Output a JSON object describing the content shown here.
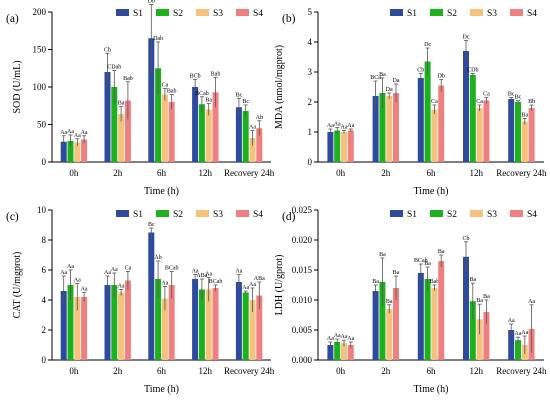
{
  "colors": {
    "S1": "#2e4a9e",
    "S2": "#1db11d",
    "S3": "#f4c27c",
    "S4": "#f08080"
  },
  "chart_data": [
    {
      "type": "bar",
      "panel_letter": "(a)",
      "categories": [
        "0h",
        "2h",
        "6h",
        "12h",
        "Recovery 24h"
      ],
      "xlabel": "Time (h)",
      "ylabel": "SOD (U/mL)",
      "ylim": [
        0,
        200
      ],
      "yticks": [
        0,
        50,
        100,
        150,
        200
      ],
      "ytick_labels": [
        "0",
        "50",
        "100",
        "150",
        "200"
      ],
      "legend": [
        "S1",
        "S2",
        "S3",
        "S4"
      ],
      "legend_position": "top",
      "series": [
        {
          "name": "S1",
          "values": [
            27,
            120,
            165,
            100,
            73
          ],
          "errors": [
            8,
            25,
            45,
            10,
            12
          ],
          "labels": [
            "Aa",
            "Cb",
            "Db",
            "BCb",
            "Bc"
          ]
        },
        {
          "name": "S2",
          "values": [
            28,
            100,
            125,
            77,
            68
          ],
          "errors": [
            8,
            22,
            35,
            10,
            8
          ],
          "labels": [
            "Aa",
            "CDab",
            "Dab",
            "BCab",
            "Bc"
          ]
        },
        {
          "name": "S3",
          "values": [
            26,
            64,
            90,
            70,
            32
          ],
          "errors": [
            5,
            10,
            8,
            8,
            10
          ],
          "labels": [
            "Aa",
            "Ba",
            "Ca",
            "Ba",
            "Aa"
          ]
        },
        {
          "name": "S4",
          "values": [
            30,
            82,
            80,
            93,
            45
          ],
          "errors": [
            5,
            25,
            10,
            20,
            10
          ],
          "labels": [
            "Aa",
            "Bab",
            "Bab",
            "Bab",
            "Ab"
          ]
        }
      ]
    },
    {
      "type": "bar",
      "panel_letter": "(b)",
      "categories": [
        "0h",
        "2h",
        "6h",
        "12h",
        "Recovery 24h"
      ],
      "xlabel": "Time (h)",
      "ylabel": "MDA (nmol/mgprot)",
      "ylim": [
        0,
        5
      ],
      "yticks": [
        0,
        1,
        2,
        3,
        4,
        5
      ],
      "ytick_labels": [
        "0",
        "1",
        "2",
        "3",
        "4",
        "5"
      ],
      "legend": [
        "S1",
        "S2",
        "S3",
        "S4"
      ],
      "legend_position": "top",
      "series": [
        {
          "name": "S1",
          "values": [
            1.0,
            2.2,
            2.8,
            3.7,
            2.1
          ],
          "errors": [
            0.1,
            0.5,
            0.15,
            0.35,
            0.05
          ],
          "labels": [
            "Aa",
            "BCa",
            "Cb",
            "Dc",
            "Bc"
          ]
        },
        {
          "name": "S2",
          "values": [
            1.05,
            2.3,
            3.35,
            2.9,
            2.0
          ],
          "errors": [
            0.1,
            0.5,
            0.45,
            0.05,
            0.05
          ],
          "labels": [
            "Aa",
            "Ba",
            "Dc",
            "CDb",
            "Bc"
          ]
        },
        {
          "name": "S3",
          "values": [
            1.0,
            2.2,
            1.75,
            1.8,
            1.35
          ],
          "errors": [
            0.05,
            0.1,
            0.15,
            0.1,
            0.1
          ],
          "labels": [
            "Aa",
            "Da",
            "Ca",
            "Ca",
            "Ba"
          ]
        },
        {
          "name": "S4",
          "values": [
            1.05,
            2.3,
            2.55,
            2.05,
            1.8
          ],
          "errors": [
            0.05,
            0.3,
            0.2,
            0.1,
            0.1
          ],
          "labels": [
            "Aa",
            "Da",
            "Db",
            "Ca",
            "Bb"
          ]
        }
      ]
    },
    {
      "type": "bar",
      "panel_letter": "(c)",
      "categories": [
        "0h",
        "2h",
        "6h",
        "12h",
        "Recovery 24h"
      ],
      "xlabel": "Time (h)",
      "ylabel": "CAT (U/mgprot)",
      "ylim": [
        0,
        10
      ],
      "yticks": [
        0,
        2,
        4,
        6,
        8,
        10
      ],
      "ytick_labels": [
        "0",
        "2",
        "4",
        "6",
        "8",
        "10"
      ],
      "legend": [
        "S1",
        "S2",
        "S3",
        "S4"
      ],
      "legend_position": "top",
      "series": [
        {
          "name": "S1",
          "values": [
            4.6,
            5.0,
            8.5,
            5.4,
            5.2
          ],
          "errors": [
            1.0,
            0.6,
            0.3,
            0.3,
            0.5
          ],
          "labels": [
            "Aa",
            "Aa",
            "Bc",
            "Aa",
            "Aa"
          ]
        },
        {
          "name": "S2",
          "values": [
            5.0,
            5.0,
            5.4,
            4.7,
            4.5
          ],
          "errors": [
            1.0,
            0.8,
            1.2,
            0.7,
            0.1
          ],
          "labels": [
            "Aa",
            "Aa",
            "Ab",
            "ABa",
            "Aa"
          ]
        },
        {
          "name": "S3",
          "values": [
            4.2,
            4.5,
            4.1,
            4.7,
            4.0
          ],
          "errors": [
            0.9,
            0.2,
            0.8,
            0.8,
            0.8
          ],
          "labels": [
            "Aa",
            "Aa",
            "Aa",
            "Aa",
            "Aa"
          ]
        },
        {
          "name": "S4",
          "values": [
            4.2,
            5.3,
            5.0,
            4.8,
            4.3
          ],
          "errors": [
            0.3,
            0.6,
            0.9,
            0.2,
            0.9
          ],
          "labels": [
            "Aa",
            "Ca",
            "BCab",
            "BCab",
            "ABa"
          ]
        }
      ]
    },
    {
      "type": "bar",
      "panel_letter": "(d)",
      "categories": [
        "0h",
        "2h",
        "6h",
        "12h",
        "Recovery 24h"
      ],
      "xlabel": "Time (h)",
      "ylabel": "LDH (U/gprot)",
      "ylim": [
        0,
        0.025
      ],
      "yticks": [
        0,
        0.005,
        0.01,
        0.015,
        0.02,
        0.025
      ],
      "ytick_labels": [
        "0.000",
        "0.005",
        "0.010",
        "0.015",
        "0.020",
        "0.025"
      ],
      "legend": [
        "S1",
        "S2",
        "S3",
        "S4"
      ],
      "legend_position": "top",
      "series": [
        {
          "name": "S1",
          "values": [
            0.0025,
            0.0115,
            0.0145,
            0.0172,
            0.005
          ],
          "errors": [
            0.0005,
            0.001,
            0.0015,
            0.0025,
            0.001
          ],
          "labels": [
            "Aa",
            "Ba",
            "BCab",
            "Cb",
            "Aa"
          ]
        },
        {
          "name": "S2",
          "values": [
            0.003,
            0.013,
            0.0135,
            0.0098,
            0.0033
          ],
          "errors": [
            0.0005,
            0.004,
            0.002,
            0.003,
            0.0005
          ],
          "labels": [
            "Aa",
            "Ba",
            "Ba",
            "Ba",
            "Aa"
          ]
        },
        {
          "name": "S3",
          "values": [
            0.0028,
            0.0085,
            0.012,
            0.0068,
            0.0025
          ],
          "errors": [
            0.0005,
            0.0007,
            0.0005,
            0.0025,
            0.0015
          ],
          "labels": [
            "Aa",
            "Ba",
            "Bab",
            "Ba",
            "Aa"
          ]
        },
        {
          "name": "S4",
          "values": [
            0.0025,
            0.012,
            0.0165,
            0.008,
            0.0052
          ],
          "errors": [
            0.0005,
            0.002,
            0.001,
            0.002,
            0.004
          ],
          "labels": [
            "Aa",
            "Ba",
            "Ba",
            "Ba",
            "Aa"
          ]
        }
      ]
    }
  ]
}
